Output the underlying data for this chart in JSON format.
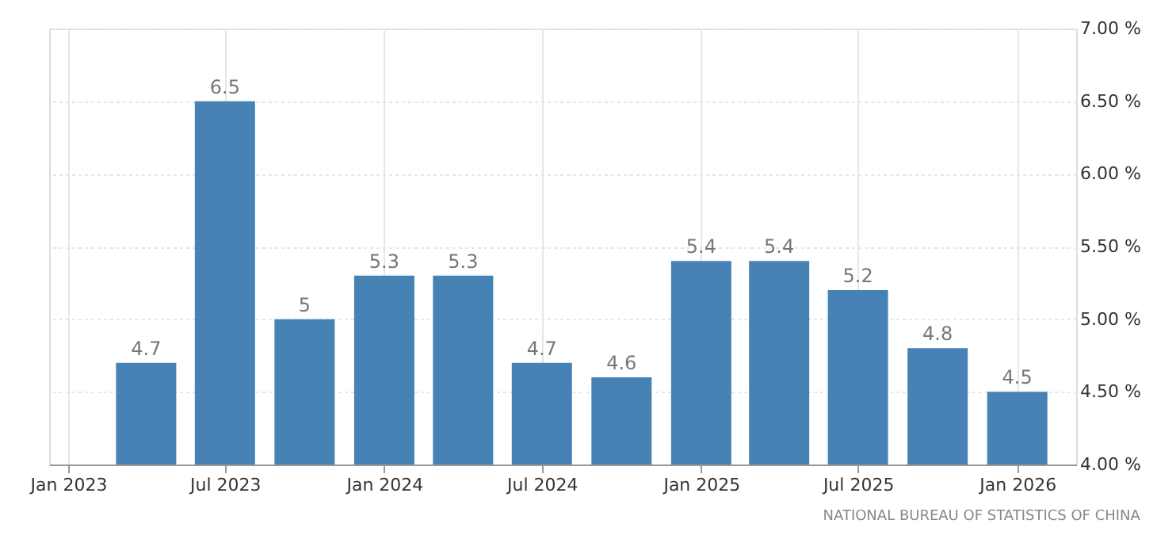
{
  "chart_data": {
    "type": "bar",
    "x": [
      "2023-04",
      "2023-07",
      "2023-10",
      "2024-01",
      "2024-04",
      "2024-07",
      "2024-10",
      "2025-01",
      "2025-04",
      "2025-07",
      "2025-10",
      "2026-01"
    ],
    "values": [
      4.7,
      6.5,
      5,
      5.3,
      5.3,
      4.7,
      4.6,
      5.4,
      5.4,
      5.2,
      4.8,
      4.5
    ],
    "color": "#4682b4",
    "data_labels": true,
    "xlim": [
      "2022-12-10",
      "2026-03-10"
    ],
    "xticks": [
      {
        "value": "2023-01",
        "label": "Jan 2023"
      },
      {
        "value": "2023-07",
        "label": "Jul 2023"
      },
      {
        "value": "2024-01",
        "label": "Jan 2024"
      },
      {
        "value": "2024-07",
        "label": "Jul 2024"
      },
      {
        "value": "2025-01",
        "label": "Jan 2025"
      },
      {
        "value": "2025-07",
        "label": "Jul 2025"
      },
      {
        "value": "2026-01",
        "label": "Jan 2026"
      }
    ],
    "ylim": [
      4,
      7
    ],
    "yticks": [
      {
        "value": 4,
        "label": "4.00 %"
      },
      {
        "value": 4.5,
        "label": "4.50 %"
      },
      {
        "value": 5,
        "label": "5.00 %"
      },
      {
        "value": 5.5,
        "label": "5.50 %"
      },
      {
        "value": 6,
        "label": "6.00 %"
      },
      {
        "value": 6.5,
        "label": "6.50 %"
      },
      {
        "value": 7,
        "label": "7.00 %"
      }
    ],
    "grid": true,
    "annotations": [
      "NATIONAL BUREAU OF STATISTICS OF CHINA"
    ]
  }
}
